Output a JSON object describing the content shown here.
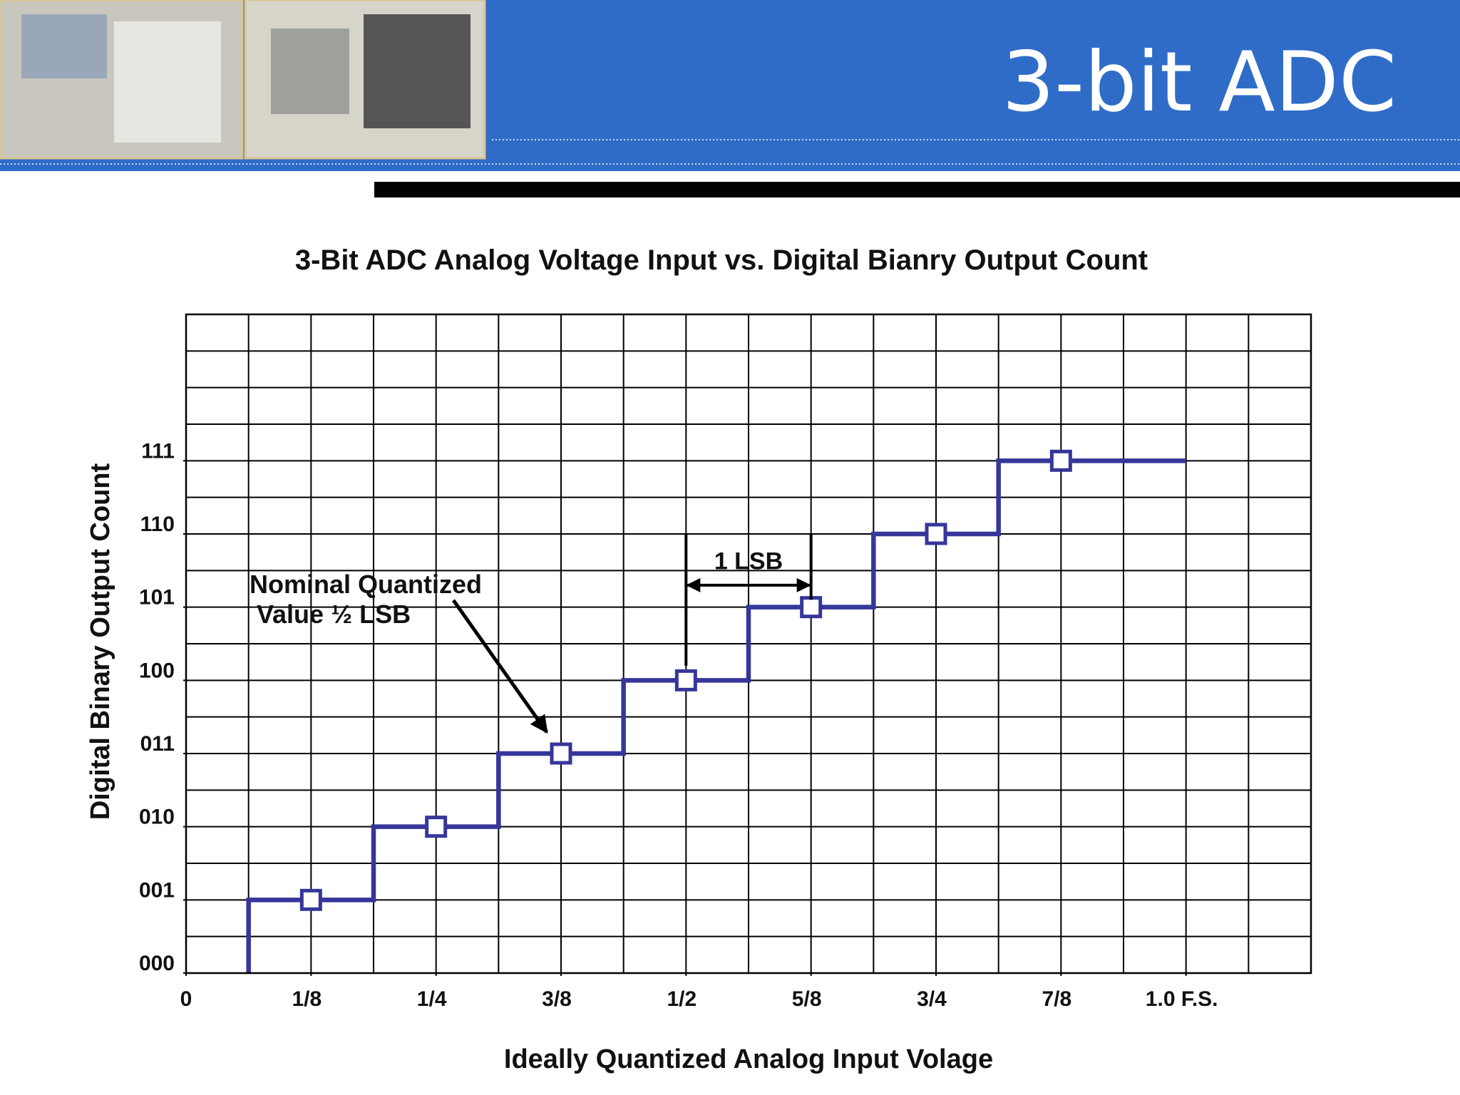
{
  "header": {
    "title": "3-bit ADC"
  },
  "chart_data": {
    "type": "line",
    "title": "3-Bit ADC Analog Voltage Input vs. Digital Bianry Output Count",
    "x_label": "Ideally Quantized Analog Input Volage",
    "y_label": "Digital Binary Output Count",
    "xlim": [
      0,
      1.125
    ],
    "ylim": [
      0,
      9
    ],
    "xticks": [
      0,
      {
        "value": 0.125,
        "label": "1/8"
      },
      {
        "value": 0.25,
        "label": "1/4"
      },
      {
        "value": 0.375,
        "label": "3/8"
      },
      {
        "value": 0.5,
        "label": "1/2"
      },
      {
        "value": 0.625,
        "label": "5/8"
      },
      {
        "value": 0.75,
        "label": "3/4"
      },
      {
        "value": 0.875,
        "label": "7/8"
      },
      {
        "value": 1,
        "label": "1.0 F.S."
      }
    ],
    "yticks": [
      {
        "value": 0,
        "label": "000"
      },
      {
        "value": 1,
        "label": "001"
      },
      {
        "value": 2,
        "label": "010"
      },
      {
        "value": 3,
        "label": "011"
      },
      {
        "value": 4,
        "label": "100"
      },
      {
        "value": 5,
        "label": "101"
      },
      {
        "value": 6,
        "label": "110"
      },
      {
        "value": 7,
        "label": "111"
      }
    ],
    "grid": {
      "x_step": 0.0625,
      "y_step": 0.5
    },
    "series": [
      {
        "color": "#36369a",
        "style": "line",
        "x": [
          0.0625,
          0.0625,
          0.1875,
          0.1875,
          0.3125,
          0.3125,
          0.4375,
          0.4375,
          0.5625,
          0.5625,
          0.6875,
          0.6875,
          0.8125,
          0.8125,
          1.0
        ],
        "values": [
          0,
          1,
          1,
          2,
          2,
          3,
          3,
          4,
          4,
          5,
          5,
          6,
          6,
          7,
          7
        ]
      },
      {
        "color": "#36369a",
        "style": "markers",
        "marker": "square",
        "x": [
          0.125,
          0.25,
          0.375,
          0.5,
          0.625,
          0.75,
          0.875
        ],
        "values": [
          1,
          2,
          3,
          4,
          5,
          6,
          7
        ]
      }
    ],
    "annotations": [
      {
        "lines": [
          "Nominal Quantized",
          "Value   ½ LSB"
        ],
        "x": 0.375,
        "y": 3
      },
      {
        "text": "1 LSB",
        "span": [
          0.5,
          0.625
        ]
      }
    ]
  }
}
